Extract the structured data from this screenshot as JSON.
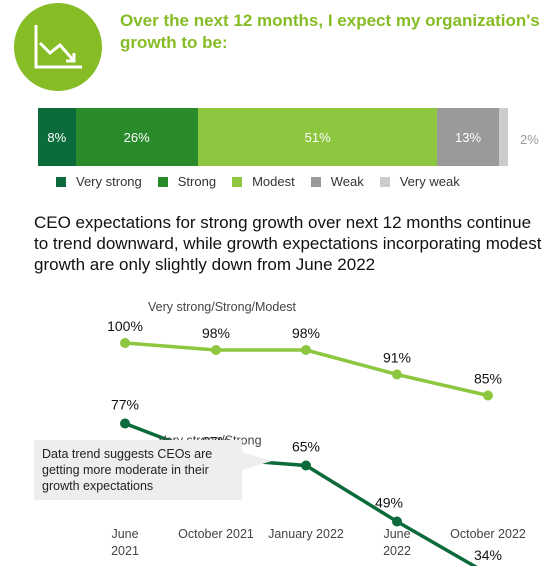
{
  "header": {
    "title": "Over the next 12 months, I expect my organization's growth to be:"
  },
  "subtitle": "CEO expectations for strong growth over next 12 months continue to trend downward, while growth expectations incorporating modest growth are only slightly down from June 2022",
  "callout": {
    "text": "Data trend suggests CEOs are getting more moderate in their growth expectations"
  },
  "icon": "declining-line-chart-icon",
  "colors": {
    "very_strong": "#0b6b3a",
    "strong": "#2a8b2a",
    "modest": "#8dc63f",
    "weak": "#9a9a9a",
    "very_weak": "#cccccc",
    "headline": "#86bc25"
  },
  "chart_data": [
    {
      "type": "bar",
      "orientation": "horizontal-stacked",
      "categories": [
        "Very strong",
        "Strong",
        "Modest",
        "Weak",
        "Very weak"
      ],
      "values": [
        8,
        26,
        51,
        13,
        2
      ],
      "labels": [
        "8%",
        "26%",
        "51%",
        "13%",
        "2%"
      ],
      "legend_placement": "bottom"
    },
    {
      "type": "line",
      "x": [
        "June 2021",
        "October 2021",
        "January 2022",
        "June 2022",
        "October 2022"
      ],
      "x_tick_lines": [
        [
          "June",
          "2021"
        ],
        [
          "October 2021"
        ],
        [
          "January 2022"
        ],
        [
          "June",
          "2022"
        ],
        [
          "October 2022"
        ]
      ],
      "series": [
        {
          "name": "Very strong/Strong/Modest",
          "values": [
            100,
            98,
            98,
            91,
            85
          ],
          "labels": [
            "100%",
            "98%",
            "98%",
            "91%",
            "85%"
          ]
        },
        {
          "name": "Very strong/Strong",
          "values": [
            77,
            67,
            65,
            49,
            34
          ],
          "labels": [
            "77%",
            "67%",
            "65%",
            "49%",
            "34%"
          ]
        }
      ],
      "grid": false
    }
  ]
}
